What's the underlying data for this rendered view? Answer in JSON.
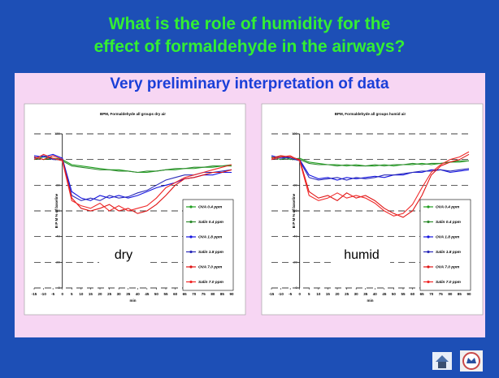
{
  "header": {
    "title": "What is the role of humidity for the effect of formaldehyde in the airways?",
    "subtitle": "Very preliminary interpretation of data"
  },
  "chart_data": [
    {
      "type": "line",
      "title": "BPM, Formaldehyde all groups dry air",
      "x_label": "min",
      "y_label": "B P M % of baseline",
      "annotation": "dry",
      "x": [
        -15,
        -10,
        -5,
        0,
        5,
        10,
        15,
        20,
        25,
        30,
        35,
        40,
        45,
        50,
        55,
        60,
        65,
        70,
        75,
        80,
        85,
        90
      ],
      "xlim": [
        -15,
        90
      ],
      "xticks": [
        -15,
        -10,
        -5,
        0,
        5,
        10,
        15,
        20,
        25,
        30,
        35,
        40,
        45,
        50,
        55,
        60,
        65,
        70,
        75,
        80,
        85,
        90
      ],
      "ylim": [
        0,
        120
      ],
      "yticks": [
        0,
        20,
        40,
        60,
        80,
        100,
        120
      ],
      "grid": true,
      "series": [
        {
          "name": "OVA 0.4 ppm",
          "color": "#1f9e1f",
          "values": [
            100,
            102,
            101,
            100,
            96,
            95,
            94,
            93,
            92,
            92,
            91,
            90,
            90,
            91,
            92,
            92,
            93,
            93,
            94,
            94,
            95,
            95
          ]
        },
        {
          "name": "Salin 0.4 ppm",
          "color": "#2e8b2e",
          "values": [
            102,
            100,
            101,
            99,
            95,
            94,
            93,
            92,
            92,
            91,
            91,
            90,
            91,
            91,
            92,
            93,
            93,
            94,
            94,
            95,
            95,
            96
          ]
        },
        {
          "name": "OVA 1.8 ppm",
          "color": "#1414e0",
          "values": [
            103,
            102,
            104,
            101,
            75,
            70,
            68,
            72,
            70,
            72,
            70,
            72,
            75,
            78,
            80,
            82,
            85,
            86,
            88,
            88,
            90,
            90
          ]
        },
        {
          "name": "Salin 1.8 ppm",
          "color": "#2a2ab8",
          "values": [
            101,
            103,
            100,
            100,
            72,
            68,
            70,
            68,
            72,
            70,
            71,
            74,
            76,
            80,
            84,
            86,
            88,
            88,
            90,
            90,
            91,
            92
          ]
        },
        {
          "name": "OVA 7.0 ppm",
          "color": "#e01414",
          "values": [
            102,
            100,
            103,
            100,
            70,
            62,
            60,
            62,
            65,
            60,
            62,
            58,
            60,
            65,
            72,
            80,
            85,
            86,
            88,
            90,
            90,
            92
          ]
        },
        {
          "name": "Salin 7.0 ppm",
          "color": "#f02828",
          "values": [
            100,
            104,
            101,
            99,
            68,
            64,
            62,
            66,
            60,
            64,
            60,
            62,
            64,
            70,
            78,
            82,
            86,
            88,
            90,
            92,
            94,
            96
          ]
        }
      ]
    },
    {
      "type": "line",
      "title": "BPM, Formaldehyde all groups humid air",
      "x_label": "min",
      "y_label": "B P M % of baseline",
      "annotation": "humid",
      "x": [
        -15,
        -10,
        -5,
        0,
        5,
        10,
        15,
        20,
        25,
        30,
        35,
        40,
        45,
        50,
        55,
        60,
        65,
        70,
        75,
        80,
        85,
        90
      ],
      "xlim": [
        -15,
        90
      ],
      "xticks": [
        -15,
        -10,
        -5,
        0,
        5,
        10,
        15,
        20,
        25,
        30,
        35,
        40,
        45,
        50,
        55,
        60,
        65,
        70,
        75,
        80,
        85,
        90
      ],
      "ylim": [
        0,
        120
      ],
      "yticks": [
        0,
        20,
        40,
        60,
        80,
        100,
        120
      ],
      "grid": true,
      "series": [
        {
          "name": "OVA 0.4 ppm",
          "color": "#1f9e1f",
          "values": [
            101,
            103,
            100,
            101,
            98,
            97,
            96,
            96,
            95,
            96,
            95,
            95,
            96,
            95,
            96,
            96,
            97,
            96,
            97,
            98,
            98,
            99
          ]
        },
        {
          "name": "Salin 0.4 ppm",
          "color": "#2e8b2e",
          "values": [
            102,
            100,
            102,
            100,
            97,
            96,
            96,
            95,
            96,
            95,
            95,
            96,
            95,
            96,
            96,
            97,
            96,
            97,
            97,
            98,
            99,
            99
          ]
        },
        {
          "name": "OVA 1.8 ppm",
          "color": "#1414e0",
          "values": [
            103,
            101,
            102,
            100,
            88,
            85,
            86,
            84,
            86,
            85,
            86,
            87,
            86,
            88,
            88,
            90,
            90,
            92,
            92,
            90,
            91,
            92
          ]
        },
        {
          "name": "Salin 1.8 ppm",
          "color": "#2a2ab8",
          "values": [
            100,
            102,
            101,
            99,
            86,
            84,
            85,
            86,
            84,
            86,
            85,
            86,
            88,
            88,
            89,
            90,
            91,
            91,
            92,
            91,
            92,
            93
          ]
        },
        {
          "name": "OVA 7.0 ppm",
          "color": "#e01414",
          "values": [
            101,
            103,
            102,
            100,
            75,
            70,
            72,
            68,
            74,
            70,
            72,
            68,
            62,
            58,
            55,
            60,
            72,
            88,
            95,
            98,
            100,
            104
          ]
        },
        {
          "name": "Salin 7.0 ppm",
          "color": "#f02828",
          "values": [
            100,
            102,
            103,
            99,
            72,
            68,
            70,
            74,
            70,
            72,
            70,
            66,
            60,
            56,
            58,
            65,
            78,
            90,
            96,
            100,
            102,
            106
          ]
        }
      ]
    }
  ]
}
